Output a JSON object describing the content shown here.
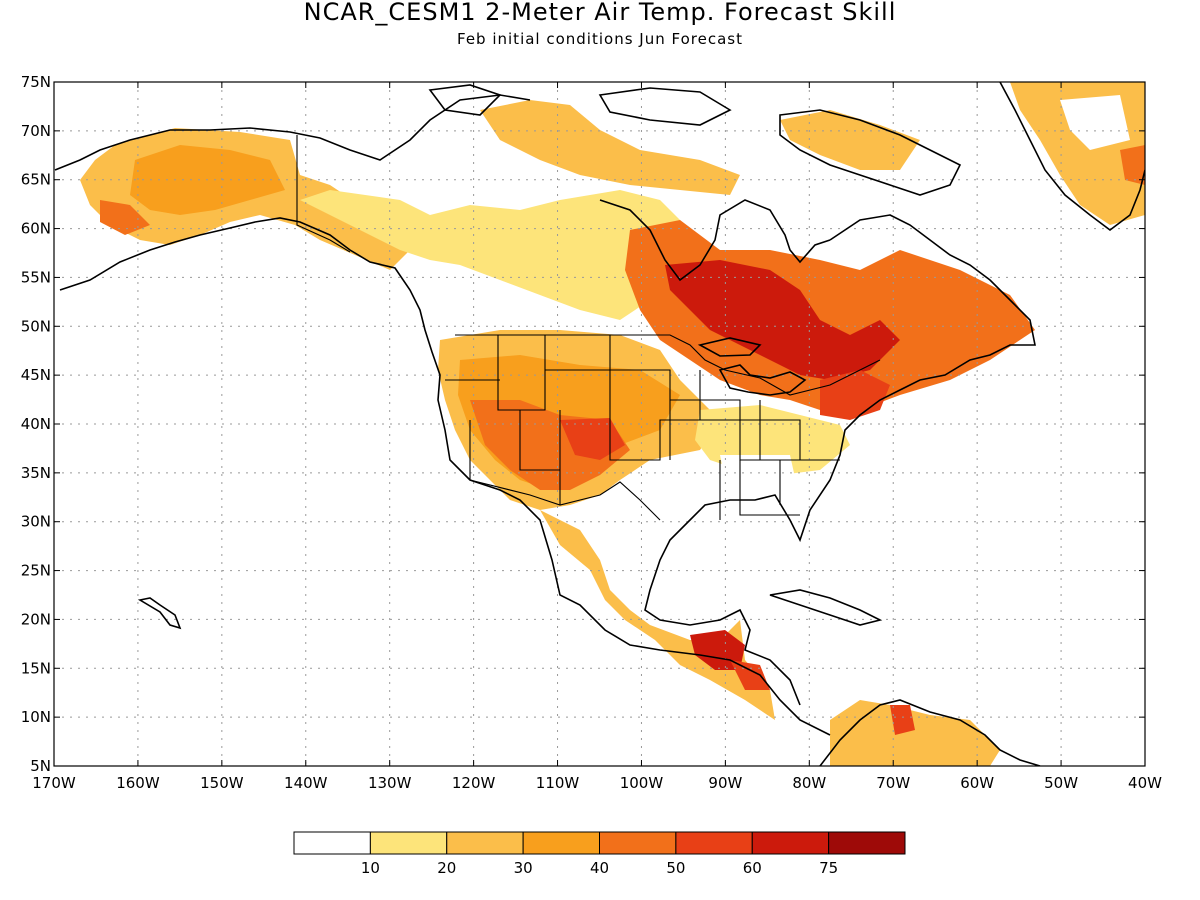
{
  "title": "NCAR_CESM1 2-Meter Air Temp. Forecast Skill",
  "subtitle": "Feb initial conditions  Jun Forecast",
  "lat_labels": [
    "75N",
    "70N",
    "65N",
    "60N",
    "55N",
    "50N",
    "45N",
    "40N",
    "35N",
    "30N",
    "25N",
    "20N",
    "15N",
    "10N",
    "5N"
  ],
  "lon_labels": [
    "170W",
    "160W",
    "150W",
    "140W",
    "130W",
    "120W",
    "110W",
    "100W",
    "90W",
    "80W",
    "70W",
    "60W",
    "50W",
    "40W"
  ],
  "legend": {
    "labels": [
      "10",
      "20",
      "30",
      "40",
      "50",
      "60",
      "75"
    ],
    "colors": [
      "#ffffff",
      "#fde47a",
      "#fbbe4a",
      "#f89f1d",
      "#f2701a",
      "#e84016",
      "#cc1a0c",
      "#9e0a08"
    ]
  },
  "colors": {
    "land_outline": "#000000",
    "grid": "#999999"
  },
  "map_extent": {
    "lat": [
      5,
      75
    ],
    "lon": [
      -170,
      -40
    ]
  }
}
